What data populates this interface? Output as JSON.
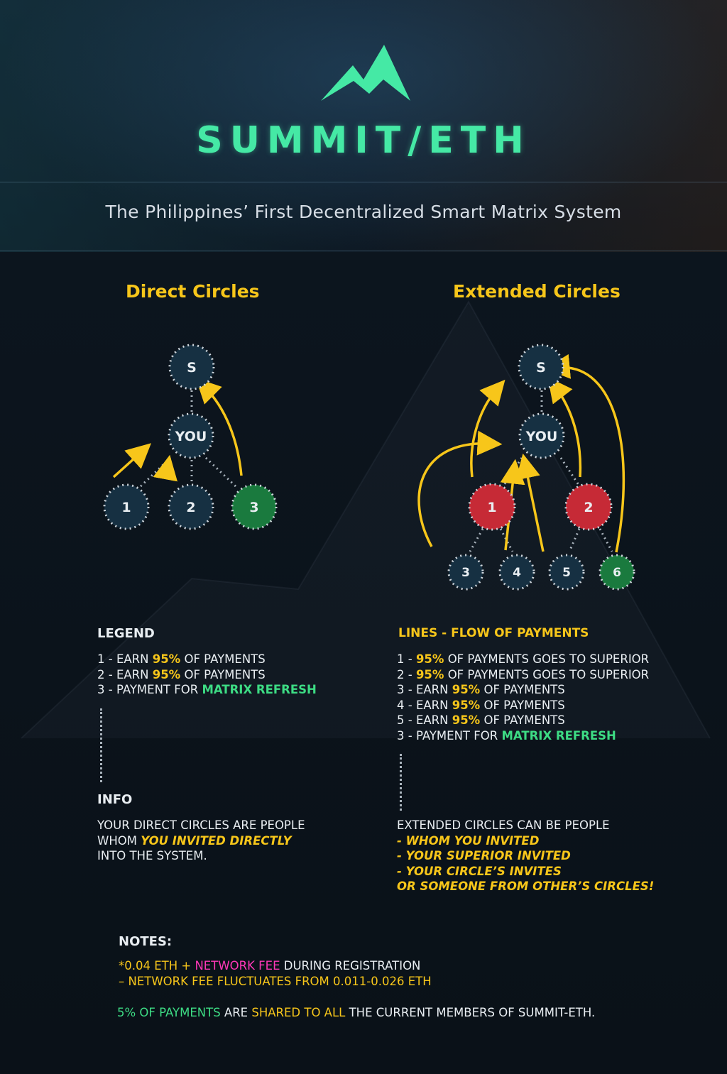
{
  "brand": {
    "name": "SUMMIT/ETH",
    "tagline": "The Philippines’ First Decentralized Smart Matrix System"
  },
  "direct": {
    "title": "Direct Circles",
    "nodes": {
      "top": "S",
      "you": "YOU",
      "n1": "1",
      "n2": "2",
      "n3": "3"
    },
    "legend_heading": "LEGEND",
    "legend": [
      {
        "a": "1 - EARN ",
        "b": "95%",
        "c": " OF PAYMENTS"
      },
      {
        "a": "2 - EARN ",
        "b": "95%",
        "c": " OF PAYMENTS"
      },
      {
        "a": "3 - PAYMENT FOR ",
        "b": "MATRIX REFRESH"
      }
    ],
    "info_heading": "INFO",
    "info": {
      "l1": "YOUR DIRECT CIRCLES ARE PEOPLE",
      "l2a": "WHOM ",
      "l2b": "YOU INVITED DIRECTLY",
      "l3": "INTO THE SYSTEM."
    }
  },
  "extended": {
    "title": "Extended Circles",
    "nodes": {
      "top": "S",
      "you": "YOU",
      "n1": "1",
      "n2": "2",
      "n3": "3",
      "n4": "4",
      "n5": "5",
      "n6": "6"
    },
    "lines_heading": "LINES - FLOW OF PAYMENTS",
    "lines": [
      {
        "a": "1 - ",
        "b": "95%",
        "c": " OF PAYMENTS GOES TO SUPERIOR"
      },
      {
        "a": "2 - ",
        "b": "95%",
        "c": " OF PAYMENTS GOES TO SUPERIOR"
      },
      {
        "a": "3 - EARN ",
        "b": "95%",
        "c": " OF PAYMENTS"
      },
      {
        "a": "4 - EARN ",
        "b": "95%",
        "c": " OF PAYMENTS"
      },
      {
        "a": "5 - EARN ",
        "b": "95%",
        "c": " OF PAYMENTS"
      },
      {
        "a": "3 - PAYMENT FOR ",
        "b": "MATRIX REFRESH"
      }
    ],
    "info": {
      "l1": "EXTENDED CIRCLES CAN BE PEOPLE",
      "l2": "- WHOM YOU INVITED",
      "l3": "- YOUR SUPERIOR INVITED",
      "l4": "- YOUR CIRCLE’S INVITES",
      "l5": "OR SOMEONE FROM OTHER’S CIRCLES!"
    }
  },
  "notes": {
    "heading": "NOTES:",
    "l1a": "*0.04 ETH + ",
    "l1b": "NETWORK FEE",
    "l1c": " DURING REGISTRATION",
    "l2": "– NETWORK FEE FLUCTUATES FROM 0.011-0.026 ETH",
    "l3a": "5% OF PAYMENTS",
    "l3b": " ARE ",
    "l3c": "SHARED TO ALL",
    "l3d": " THE CURRENT MEMBERS OF SUMMIT-ETH."
  },
  "colors": {
    "accent": "#45e9a5",
    "yellow": "#f7c61a",
    "green": "#3ddc84",
    "red": "#c62a36",
    "magenta": "#ff38b8",
    "node": "#163042"
  }
}
